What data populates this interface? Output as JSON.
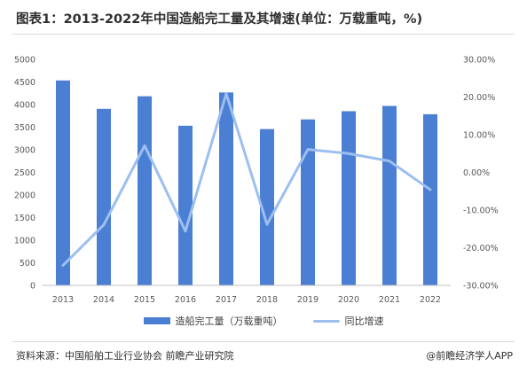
{
  "title": "图表1：2013-2022年中国造船完工量及其增速(单位：万载重吨，%)",
  "source": "资料来源：中国船舶工业行业协会 前瞻产业研究院",
  "brand": "@前瞻经济学人APP",
  "chart_data": {
    "type": "bar",
    "categories": [
      "2013",
      "2014",
      "2015",
      "2016",
      "2017",
      "2018",
      "2019",
      "2020",
      "2021",
      "2022"
    ],
    "series": [
      {
        "name": "造船完工量（万载重吨）",
        "type": "bar",
        "axis": "left",
        "color": "#4a7fd4",
        "values": [
          4534,
          3905,
          4184,
          3532,
          4268,
          3458,
          3672,
          3853,
          3970,
          3786
        ]
      },
      {
        "name": "同比增速",
        "type": "line",
        "axis": "right",
        "color": "#9dbff0",
        "values": [
          -24.7,
          -13.9,
          7.1,
          -15.6,
          20.9,
          -13.8,
          6.1,
          5.0,
          3.0,
          -4.6
        ]
      }
    ],
    "ylim_left": [
      0,
      5000
    ],
    "ylim_right": [
      -30,
      30
    ],
    "y_left_ticks": [
      "0",
      "500",
      "1000",
      "1500",
      "2000",
      "2500",
      "3000",
      "3500",
      "4000",
      "4500",
      "5000"
    ],
    "y_right_ticks": [
      "-30.00%",
      "-20.00%",
      "-10.00%",
      "0.00%",
      "10.00%",
      "20.00%",
      "30.00%"
    ],
    "grid": false,
    "legend_position": "bottom"
  }
}
